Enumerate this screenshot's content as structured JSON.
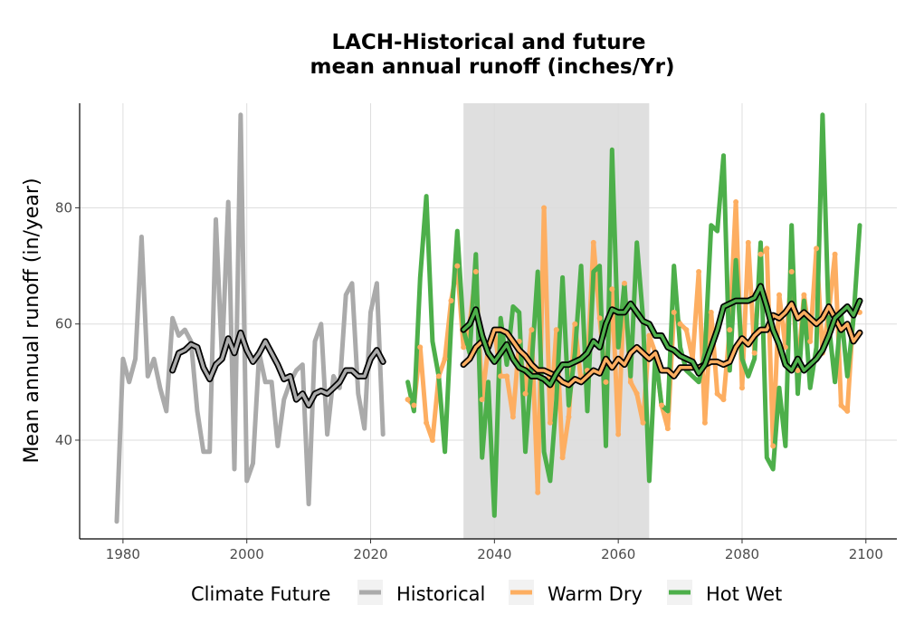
{
  "chart_data": {
    "type": "line",
    "title_line1": "LACH-Historical and future",
    "title_line2": "mean annual runoff (inches/Yr)",
    "xlabel": "",
    "ylabel": "Mean annual runoff (in/year)",
    "xlim": [
      1973,
      2105
    ],
    "ylim": [
      23,
      98
    ],
    "x_ticks": [
      1980,
      2000,
      2020,
      2040,
      2060,
      2080,
      2100
    ],
    "y_ticks": [
      40,
      60,
      80
    ],
    "grid": true,
    "shaded_region": [
      2035,
      2065
    ],
    "legend": {
      "title": "Climate Future",
      "position": "bottom",
      "entries": [
        "Historical",
        "Warm Dry",
        "Hot Wet"
      ]
    },
    "colors": {
      "Historical": "#aaaaaa",
      "Warm Dry": "#fdae61",
      "Hot Wet": "#4daf4a",
      "shade": "#dcdcdc",
      "smooth_outline": "#000000"
    },
    "series": [
      {
        "name": "Historical",
        "x": [
          1979,
          1980,
          1981,
          1982,
          1983,
          1984,
          1985,
          1986,
          1987,
          1988,
          1989,
          1990,
          1991,
          1992,
          1993,
          1994,
          1995,
          1996,
          1997,
          1998,
          1999,
          2000,
          2001,
          2002,
          2003,
          2004,
          2005,
          2006,
          2007,
          2008,
          2009,
          2010,
          2011,
          2012,
          2013,
          2014,
          2015,
          2016,
          2017,
          2018,
          2019,
          2020,
          2021,
          2022
        ],
        "values": [
          26,
          54,
          50,
          54,
          75,
          51,
          54,
          49,
          45,
          61,
          58,
          59,
          57,
          45,
          38,
          38,
          78,
          54,
          81,
          35,
          96,
          33,
          36,
          55,
          50,
          50,
          39,
          47,
          50,
          52,
          53,
          29,
          57,
          60,
          41,
          51,
          49,
          65,
          67,
          48,
          42,
          62,
          67,
          41
        ],
        "smoothed_x": [
          1988,
          1989,
          1990,
          1991,
          1992,
          1993,
          1994,
          1995,
          1996,
          1997,
          1998,
          1999,
          2000,
          2001,
          2002,
          2003,
          2004,
          2005,
          2006,
          2007,
          2008,
          2009,
          2010,
          2011,
          2012,
          2013,
          2014,
          2015,
          2016,
          2017,
          2018,
          2019,
          2020,
          2021,
          2022
        ],
        "smoothed_values": [
          52,
          55,
          55.5,
          56.5,
          56,
          52.5,
          50.5,
          53,
          54,
          57.5,
          55,
          58.5,
          55.5,
          53.5,
          55,
          57,
          55,
          53,
          50.5,
          51,
          47,
          48,
          46,
          48,
          48.5,
          48,
          49,
          50,
          52,
          52,
          51,
          51,
          54,
          55.5,
          53.5
        ]
      },
      {
        "name": "Warm Dry",
        "x": [
          2026,
          2027,
          2028,
          2029,
          2030,
          2031,
          2032,
          2033,
          2034,
          2035,
          2036,
          2037,
          2038,
          2039,
          2040,
          2041,
          2042,
          2043,
          2044,
          2045,
          2046,
          2047,
          2048,
          2049,
          2050,
          2051,
          2052,
          2053,
          2054,
          2055,
          2056,
          2057,
          2058,
          2059,
          2060,
          2061,
          2062,
          2063,
          2064,
          2065,
          2066,
          2067,
          2068,
          2069,
          2070,
          2071,
          2072,
          2073,
          2074,
          2075,
          2076,
          2077,
          2078,
          2079,
          2080,
          2081,
          2082,
          2083,
          2084,
          2085,
          2086,
          2087,
          2088,
          2089,
          2090,
          2091,
          2092,
          2093,
          2094,
          2095,
          2096,
          2097,
          2098,
          2099
        ],
        "values": [
          47,
          46,
          56,
          43,
          40,
          51,
          54,
          64,
          70,
          56,
          60,
          69,
          47,
          56,
          59,
          51,
          51,
          44,
          57,
          48,
          59,
          31,
          80,
          43,
          59,
          37,
          44,
          60,
          50,
          52,
          74,
          61,
          50,
          66,
          41,
          67,
          50,
          48,
          43,
          58,
          55,
          46,
          42,
          62,
          60,
          59,
          54,
          69,
          43,
          62,
          48,
          47,
          59,
          81,
          49,
          74,
          55,
          72,
          73,
          39,
          65,
          56,
          69,
          52,
          65,
          57,
          73,
          55,
          62,
          72,
          46,
          45,
          62,
          62
        ],
        "smoothed_x": [
          2035,
          2036,
          2037,
          2038,
          2039,
          2040,
          2041,
          2042,
          2043,
          2044,
          2045,
          2046,
          2047,
          2048,
          2049,
          2050,
          2051,
          2052,
          2053,
          2054,
          2055,
          2056,
          2057,
          2058,
          2059,
          2060,
          2061,
          2062,
          2063,
          2064,
          2065,
          2066,
          2067,
          2068,
          2069,
          2070,
          2071,
          2072,
          2073,
          2074,
          2075,
          2076,
          2077,
          2078,
          2079,
          2080,
          2081,
          2082,
          2083,
          2084,
          2085,
          2086,
          2087,
          2088,
          2089,
          2090,
          2091,
          2092,
          2093,
          2094,
          2095,
          2096,
          2097,
          2098,
          2099
        ],
        "smoothed_values": [
          53,
          54,
          56,
          57,
          56,
          59,
          59,
          58.5,
          57,
          55.5,
          54.5,
          53,
          52,
          52,
          51.5,
          51,
          50,
          49.5,
          50.5,
          50,
          51,
          52,
          51.5,
          54,
          52.5,
          54,
          53,
          55,
          56,
          55,
          54,
          55,
          52,
          52,
          51,
          52.5,
          52.5,
          52.5,
          52.5,
          53,
          53.5,
          53.5,
          53,
          53.5,
          56,
          57.5,
          56.5,
          58,
          59,
          59,
          61.5,
          61,
          62,
          63.5,
          61,
          62,
          61,
          60,
          61,
          63,
          61,
          59,
          60,
          57,
          58.5
        ]
      },
      {
        "name": "Hot Wet",
        "x": [
          2026,
          2027,
          2028,
          2029,
          2030,
          2031,
          2032,
          2033,
          2034,
          2035,
          2036,
          2037,
          2038,
          2039,
          2040,
          2041,
          2042,
          2043,
          2044,
          2045,
          2046,
          2047,
          2048,
          2049,
          2050,
          2051,
          2052,
          2053,
          2054,
          2055,
          2056,
          2057,
          2058,
          2059,
          2060,
          2061,
          2062,
          2063,
          2064,
          2065,
          2066,
          2067,
          2068,
          2069,
          2070,
          2071,
          2072,
          2073,
          2074,
          2075,
          2076,
          2077,
          2078,
          2079,
          2080,
          2081,
          2082,
          2083,
          2084,
          2085,
          2086,
          2087,
          2088,
          2089,
          2090,
          2091,
          2092,
          2093,
          2094,
          2095,
          2096,
          2097,
          2098,
          2099
        ],
        "values": [
          50,
          45,
          68,
          82,
          57,
          51,
          38,
          60,
          76,
          59,
          55,
          72,
          37,
          50,
          27,
          61,
          53,
          63,
          62,
          38,
          53,
          69,
          38,
          33,
          47,
          68,
          46,
          55,
          70,
          45,
          69,
          70,
          39,
          90,
          56,
          67,
          51,
          74,
          61,
          33,
          55,
          46,
          45,
          70,
          56,
          52,
          51,
          50,
          55,
          77,
          76,
          89,
          52,
          71,
          54,
          51,
          54,
          74,
          37,
          35,
          49,
          39,
          77,
          48,
          64,
          49,
          56,
          96,
          60,
          50,
          62,
          51,
          61,
          77
        ],
        "smoothed_x": [
          2035,
          2036,
          2037,
          2038,
          2039,
          2040,
          2041,
          2042,
          2043,
          2044,
          2045,
          2046,
          2047,
          2048,
          2049,
          2050,
          2051,
          2052,
          2053,
          2054,
          2055,
          2056,
          2057,
          2058,
          2059,
          2060,
          2061,
          2062,
          2063,
          2064,
          2065,
          2066,
          2067,
          2068,
          2069,
          2070,
          2071,
          2072,
          2073,
          2074,
          2075,
          2076,
          2077,
          2078,
          2079,
          2080,
          2081,
          2082,
          2083,
          2084,
          2085,
          2086,
          2087,
          2088,
          2089,
          2090,
          2091,
          2092,
          2093,
          2094,
          2095,
          2096,
          2097,
          2098,
          2099
        ],
        "smoothed_values": [
          59,
          60,
          62.5,
          58,
          55,
          53.5,
          55,
          56.5,
          54,
          52.5,
          52,
          51,
          51,
          50.5,
          49.5,
          51.5,
          53,
          53,
          53.5,
          54,
          55,
          57,
          56,
          60,
          62.5,
          62,
          62,
          63.5,
          62,
          60.5,
          60,
          58,
          58,
          56,
          55.5,
          54.5,
          54,
          53.5,
          51.5,
          53,
          56,
          59,
          63,
          63.5,
          64,
          64,
          64,
          64.5,
          66.5,
          63,
          59,
          56.5,
          53,
          52,
          54,
          52,
          53,
          54,
          55.5,
          58,
          61,
          62,
          63,
          61.5,
          64
        ]
      }
    ]
  }
}
